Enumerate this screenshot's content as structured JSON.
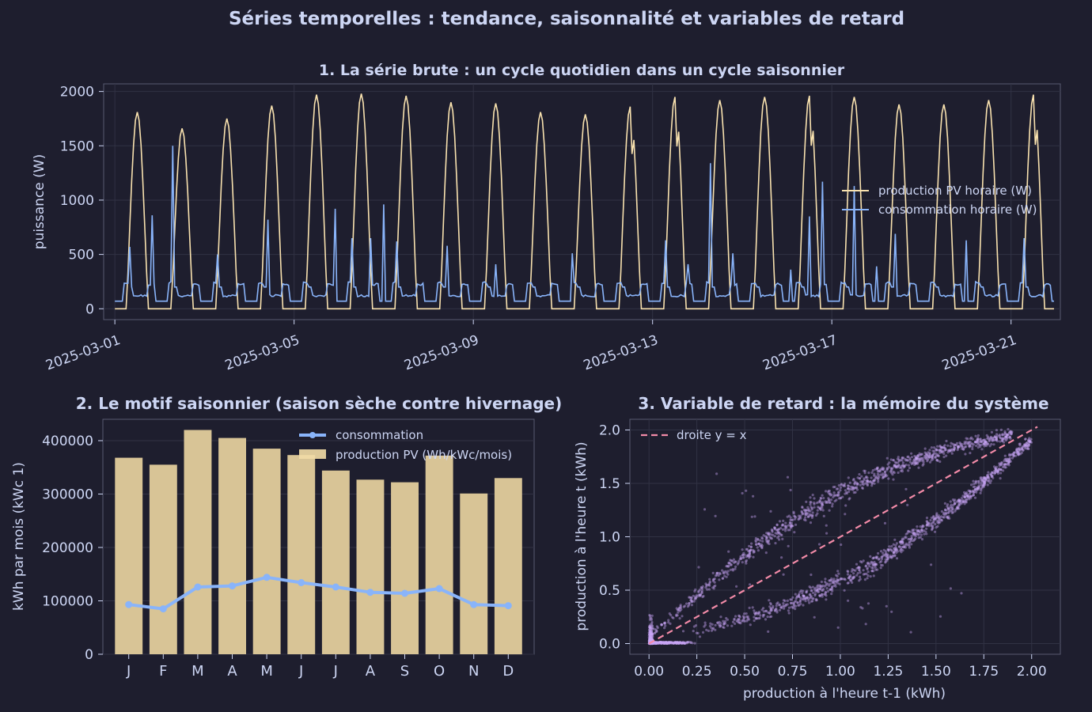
{
  "suptitle": "Séries temporelles : tendance, saisonnalité et variables de retard",
  "colors": {
    "background": "#1e1e2e",
    "text": "#cdd6f4",
    "axis": "#585b70",
    "grid": "#313244",
    "production": "#f9e2af",
    "consumption": "#89b4fa",
    "bar": "#d8c496",
    "scatter": "#cba6f7",
    "identity": "#f38ba8"
  },
  "chart_data": [
    {
      "id": "raw",
      "type": "line",
      "title": "1. La série brute : un cycle quotidien dans un cycle saisonnier",
      "ylabel": "puissance (W)",
      "xlabel": "",
      "ylim": [
        -100,
        2070
      ],
      "yticks": [
        0,
        500,
        1000,
        1500,
        2000
      ],
      "xticks": [
        "2025-03-01",
        "2025-03-05",
        "2025-03-09",
        "2025-03-13",
        "2025-03-17",
        "2025-03-21"
      ],
      "xstart": "2025-03-01",
      "xrange_days": [
        -0.25,
        21.1
      ],
      "legend": "right",
      "daily_peaks": [
        1810,
        1660,
        1750,
        1870,
        1970,
        1980,
        1960,
        1900,
        1890,
        1810,
        1790,
        1860,
        1950,
        1920,
        1950,
        1960,
        1950,
        1880,
        1880,
        1920,
        1970
      ],
      "consumption_spikes": [
        [
          0.35,
          570
        ],
        [
          0.85,
          860
        ],
        [
          1.3,
          1500
        ],
        [
          2.3,
          500
        ],
        [
          3.4,
          820
        ],
        [
          4.9,
          920
        ],
        [
          5.3,
          650
        ],
        [
          5.7,
          650
        ],
        [
          6.0,
          960
        ],
        [
          6.3,
          620
        ],
        [
          7.4,
          580
        ],
        [
          8.5,
          410
        ],
        [
          10.2,
          510
        ],
        [
          12.3,
          630
        ],
        [
          12.8,
          410
        ],
        [
          13.3,
          1340
        ],
        [
          13.8,
          510
        ],
        [
          15.1,
          360
        ],
        [
          15.5,
          850
        ],
        [
          15.8,
          1170
        ],
        [
          16.5,
          1130
        ],
        [
          17.0,
          390
        ],
        [
          17.4,
          690
        ],
        [
          19.0,
          630
        ],
        [
          20.3,
          650
        ]
      ],
      "series": [
        {
          "name": "production PV horaire (W)",
          "color": "#f9e2af"
        },
        {
          "name": "consommation horaire (W)",
          "color": "#89b4fa"
        }
      ]
    },
    {
      "id": "seasonal",
      "type": "bar",
      "title": "2. Le motif saisonnier (saison sèche contre hivernage)",
      "ylabel": "kWh par mois (kWc 1)",
      "xlabel": "",
      "ylim": [
        0,
        440000
      ],
      "yticks": [
        0,
        100000,
        200000,
        300000,
        400000
      ],
      "categories": [
        "J",
        "F",
        "M",
        "A",
        "M",
        "J",
        "J",
        "A",
        "S",
        "O",
        "N",
        "D"
      ],
      "legend": "top-center",
      "series": [
        {
          "name": "consommation",
          "type": "line",
          "color": "#89b4fa",
          "values": [
            93000,
            85000,
            126000,
            128000,
            144000,
            134000,
            126000,
            116000,
            114000,
            123000,
            93000,
            91000
          ]
        },
        {
          "name": "production PV (Wh/kWc/mois)",
          "type": "bar",
          "color": "#d8c496",
          "values": [
            368000,
            355000,
            420000,
            405000,
            385000,
            373000,
            344000,
            327000,
            322000,
            372000,
            301000,
            330000
          ]
        }
      ]
    },
    {
      "id": "lag",
      "type": "scatter",
      "title": "3. Variable de retard : la mémoire du système",
      "xlabel": "production à l'heure t-1 (kWh)",
      "ylabel": "production à l'heure t (kWh)",
      "xlim": [
        -0.1,
        2.15
      ],
      "ylim": [
        -0.1,
        2.1
      ],
      "xticks": [
        0.0,
        0.25,
        0.5,
        0.75,
        1.0,
        1.25,
        1.5,
        1.75,
        2.0
      ],
      "yticks": [
        0.0,
        0.5,
        1.0,
        1.5,
        2.0
      ],
      "legend": "top-left",
      "identity_line": {
        "name": "droite y = x",
        "from": [
          0,
          0
        ],
        "to": [
          2.03,
          2.03
        ]
      }
    }
  ]
}
